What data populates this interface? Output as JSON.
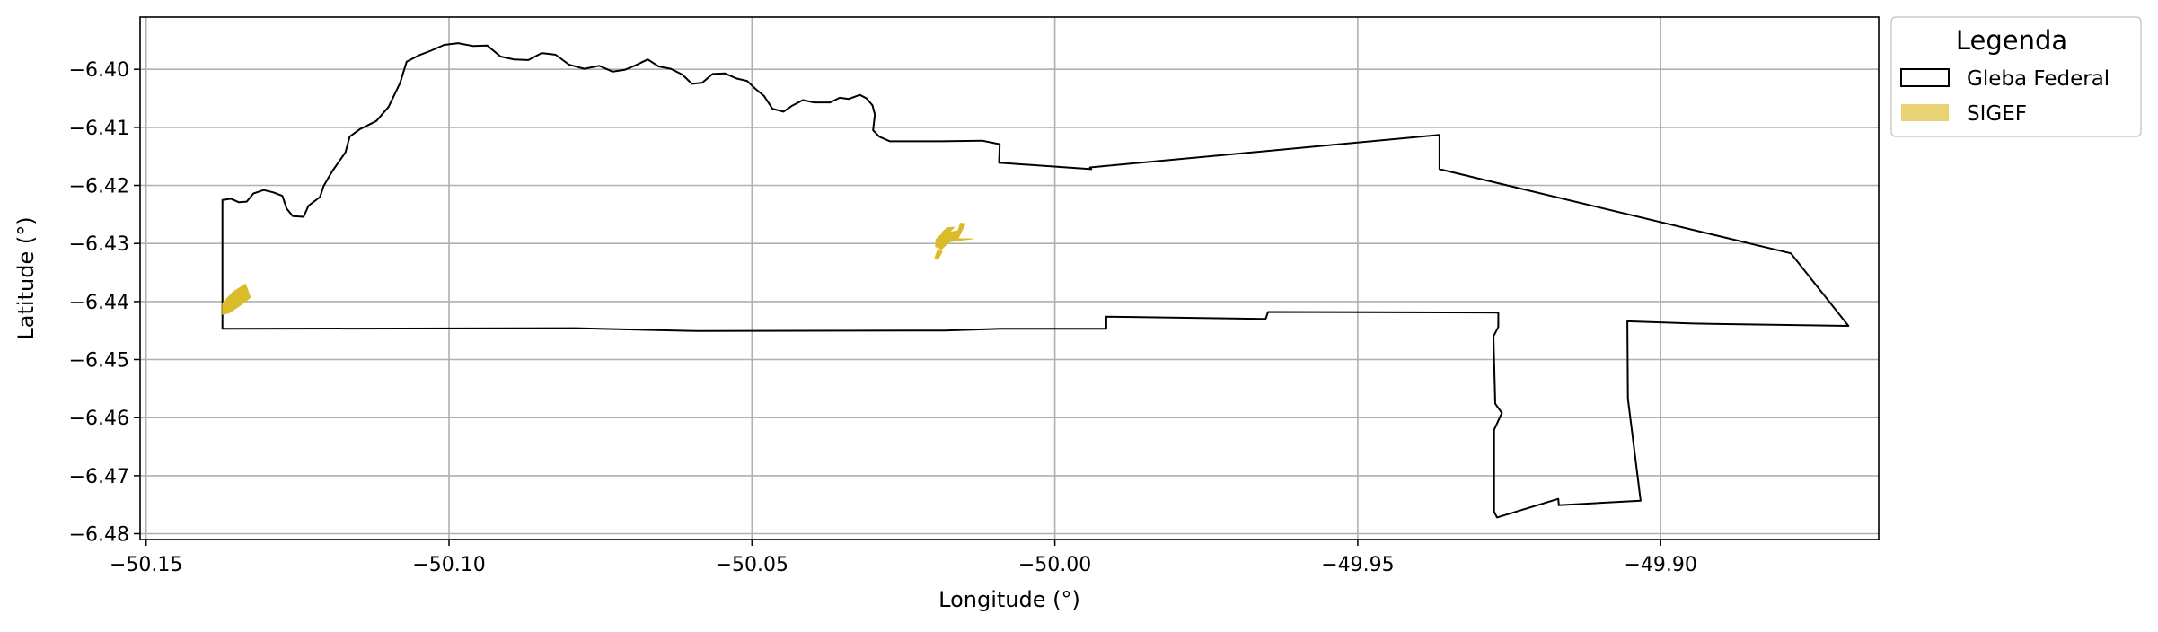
{
  "chart_data": {
    "type": "map",
    "title": "",
    "xlabel": "Longitude (°)",
    "ylabel": "Latitude (°)",
    "xlim": [
      -50.151,
      -49.864
    ],
    "ylim": [
      -6.481,
      -6.391
    ],
    "x_ticks": [
      -50.15,
      -50.1,
      -50.05,
      -50.0,
      -49.95,
      -49.9
    ],
    "x_tick_labels": [
      "−50.15",
      "−50.10",
      "−50.05",
      "−50.00",
      "−49.95",
      "−49.90"
    ],
    "y_ticks": [
      -6.4,
      -6.41,
      -6.42,
      -6.43,
      -6.44,
      -6.45,
      -6.46,
      -6.47,
      -6.48
    ],
    "y_tick_labels": [
      "−6.40",
      "−6.41",
      "−6.42",
      "−6.43",
      "−6.44",
      "−6.45",
      "−6.46",
      "−6.47",
      "−6.48"
    ],
    "grid": true,
    "legend": {
      "title": "Legenda",
      "placement": "outside-top-right",
      "entries": [
        {
          "label": "Gleba Federal",
          "style": "outline",
          "color": "#000000"
        },
        {
          "label": "SIGEF",
          "style": "fill",
          "color": "#dcbb2a"
        }
      ]
    },
    "layers": [
      {
        "name": "Gleba Federal",
        "kind": "polygon-outline",
        "stroke": "#000000",
        "coords": [
          [
            -50.1374,
            -6.4447
          ],
          [
            -50.1374,
            -6.4225
          ],
          [
            -50.136,
            -6.4223
          ],
          [
            -50.1347,
            -6.4229
          ],
          [
            -50.1334,
            -6.4228
          ],
          [
            -50.1323,
            -6.4214
          ],
          [
            -50.1306,
            -6.4208
          ],
          [
            -50.129,
            -6.4212
          ],
          [
            -50.1275,
            -6.4218
          ],
          [
            -50.1268,
            -6.424
          ],
          [
            -50.1258,
            -6.4253
          ],
          [
            -50.124,
            -6.4254
          ],
          [
            -50.1232,
            -6.4235
          ],
          [
            -50.1213,
            -6.422
          ],
          [
            -50.1207,
            -6.4201
          ],
          [
            -50.1193,
            -6.4176
          ],
          [
            -50.1171,
            -6.4143
          ],
          [
            -50.1164,
            -6.4116
          ],
          [
            -50.1147,
            -6.4103
          ],
          [
            -50.112,
            -6.4089
          ],
          [
            -50.11,
            -6.4065
          ],
          [
            -50.1081,
            -6.4024
          ],
          [
            -50.107,
            -6.3987
          ],
          [
            -50.105,
            -6.3976
          ],
          [
            -50.103,
            -6.3968
          ],
          [
            -50.1008,
            -6.3958
          ],
          [
            -50.0985,
            -6.3955
          ],
          [
            -50.096,
            -6.396
          ],
          [
            -50.0937,
            -6.3959
          ],
          [
            -50.0915,
            -6.3978
          ],
          [
            -50.0893,
            -6.3983
          ],
          [
            -50.0869,
            -6.3984
          ],
          [
            -50.0847,
            -6.3972
          ],
          [
            -50.0824,
            -6.3975
          ],
          [
            -50.0802,
            -6.3992
          ],
          [
            -50.0777,
            -6.3999
          ],
          [
            -50.0752,
            -6.3994
          ],
          [
            -50.073,
            -6.4004
          ],
          [
            -50.071,
            -6.4001
          ],
          [
            -50.0692,
            -6.3993
          ],
          [
            -50.0672,
            -6.3983
          ],
          [
            -50.0654,
            -6.3995
          ],
          [
            -50.0634,
            -6.3999
          ],
          [
            -50.0615,
            -6.4009
          ],
          [
            -50.0599,
            -6.4025
          ],
          [
            -50.0582,
            -6.4023
          ],
          [
            -50.0565,
            -6.4008
          ],
          [
            -50.0545,
            -6.4007
          ],
          [
            -50.0525,
            -6.4016
          ],
          [
            -50.0508,
            -6.402
          ],
          [
            -50.0495,
            -6.4033
          ],
          [
            -50.048,
            -6.4046
          ],
          [
            -50.0466,
            -6.4068
          ],
          [
            -50.0448,
            -6.4073
          ],
          [
            -50.0434,
            -6.4063
          ],
          [
            -50.0416,
            -6.4053
          ],
          [
            -50.0397,
            -6.4057
          ],
          [
            -50.0371,
            -6.4057
          ],
          [
            -50.0355,
            -6.4049
          ],
          [
            -50.034,
            -6.4051
          ],
          [
            -50.0322,
            -6.4044
          ],
          [
            -50.0311,
            -6.405
          ],
          [
            -50.0301,
            -6.4062
          ],
          [
            -50.0297,
            -6.4078
          ],
          [
            -50.03,
            -6.4105
          ],
          [
            -50.029,
            -6.4116
          ],
          [
            -50.0272,
            -6.4124
          ],
          [
            -50.0188,
            -6.4124
          ],
          [
            -50.012,
            -6.4123
          ],
          [
            -50.0091,
            -6.4129
          ],
          [
            -50.0092,
            -6.4161
          ],
          [
            -49.994,
            -6.4172
          ],
          [
            -49.9942,
            -6.4169
          ],
          [
            -49.9365,
            -6.4113
          ],
          [
            -49.9365,
            -6.4172
          ],
          [
            -49.8785,
            -6.4317
          ],
          [
            -49.869,
            -6.4442
          ],
          [
            -49.8946,
            -6.4438
          ],
          [
            -49.9055,
            -6.4434
          ],
          [
            -49.9054,
            -6.4567
          ],
          [
            -49.9033,
            -6.4743
          ],
          [
            -49.9137,
            -6.4749
          ],
          [
            -49.9168,
            -6.4751
          ],
          [
            -49.9169,
            -6.474
          ],
          [
            -49.927,
            -6.4772
          ],
          [
            -49.9275,
            -6.4762
          ],
          [
            -49.9275,
            -6.4621
          ],
          [
            -49.9262,
            -6.4592
          ],
          [
            -49.9273,
            -6.4576
          ],
          [
            -49.9276,
            -6.446
          ],
          [
            -49.9268,
            -6.4444
          ],
          [
            -49.9268,
            -6.4419
          ],
          [
            -49.9648,
            -6.4418
          ],
          [
            -49.9652,
            -6.443
          ],
          [
            -49.9915,
            -6.4426
          ],
          [
            -49.9915,
            -6.4447
          ],
          [
            -50.009,
            -6.4447
          ],
          [
            -50.0182,
            -6.445
          ],
          [
            -50.059,
            -6.4451
          ],
          [
            -50.079,
            -6.4446
          ],
          [
            -50.1374,
            -6.4447
          ]
        ]
      },
      {
        "name": "SIGEF",
        "kind": "polygon-fill",
        "fill": "#dcbb2a",
        "parts": [
          [
            [
              -50.1374,
              -6.4422
            ],
            [
              -50.1374,
              -6.4403
            ],
            [
              -50.1356,
              -6.4383
            ],
            [
              -50.1336,
              -6.437
            ],
            [
              -50.1328,
              -6.4393
            ],
            [
              -50.1345,
              -6.4407
            ],
            [
              -50.1364,
              -6.442
            ],
            [
              -50.1374,
              -6.4422
            ]
          ],
          [
            [
              -50.0197,
              -6.4305
            ],
            [
              -50.0196,
              -6.4293
            ],
            [
              -50.0186,
              -6.4283
            ],
            [
              -50.016,
              -6.4278
            ],
            [
              -50.0156,
              -6.4265
            ],
            [
              -50.0148,
              -6.4266
            ],
            [
              -50.016,
              -6.4292
            ],
            [
              -50.0136,
              -6.4292
            ],
            [
              -50.0174,
              -6.4297
            ],
            [
              -50.0187,
              -6.431
            ],
            [
              -50.0197,
              -6.4305
            ]
          ],
          [
            [
              -50.0186,
              -6.4281
            ],
            [
              -50.0178,
              -6.4273
            ],
            [
              -50.0166,
              -6.4272
            ],
            [
              -50.0178,
              -6.4285
            ],
            [
              -50.0186,
              -6.4281
            ]
          ],
          [
            [
              -50.0198,
              -6.4325
            ],
            [
              -50.0193,
              -6.431
            ],
            [
              -50.0186,
              -6.4314
            ],
            [
              -50.0193,
              -6.4328
            ],
            [
              -50.0198,
              -6.4325
            ]
          ]
        ]
      }
    ]
  }
}
